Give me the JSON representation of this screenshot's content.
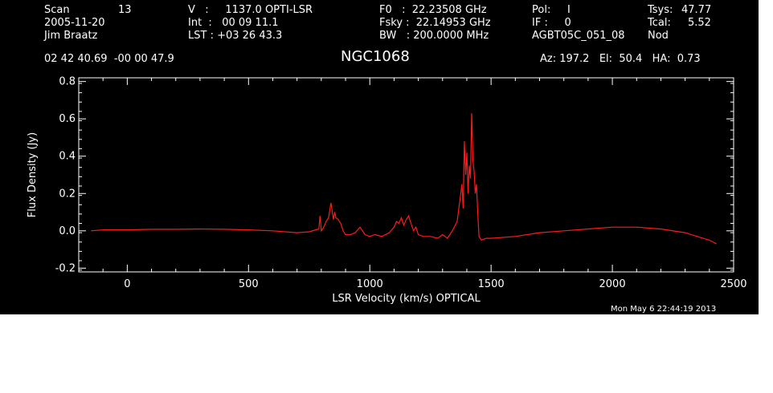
{
  "header": {
    "col1": {
      "scan_label": "Scan",
      "scan_value": "13",
      "date": "2005-11-20",
      "observer": "Jim Braatz"
    },
    "col2": {
      "velocity": "V   :     1137.0 OPTI-LSR",
      "int": "Int  :   00 09 11.1",
      "lst": "LST : +03 26 43.3"
    },
    "col3": {
      "f0": "F0   :  22.23508 GHz",
      "fsky": "Fsky :  22.14953 GHz",
      "bw": "BW   : 200.0000 MHz"
    },
    "col4": {
      "pol": "Pol:     I",
      "if": "IF :     0",
      "session": "AGBT05C_051_08"
    },
    "col5": {
      "tsys_label": "Tsys:",
      "tsys_value": "47.77",
      "tcal_label": "Tcal:",
      "tcal_value": "5.52",
      "mode": "Nod"
    },
    "coords": "02 42 40.69  -00 00 47.9",
    "pointing": "Az: 197.2   El:  50.4   HA:  0.73"
  },
  "footer": {
    "date": "Mon May  6 22:44:19 2013"
  },
  "colors": {
    "background": "#000000",
    "axes": "#ffffff",
    "series": "#ff1a1a"
  },
  "chart_data": {
    "type": "line",
    "title": "NGC1068",
    "xlabel": "LSR Velocity (km/s) OPTICAL",
    "ylabel": "Flux Density (Jy)",
    "xlim": [
      -200,
      2500
    ],
    "ylim": [
      -0.22,
      0.82
    ],
    "xticks": [
      0,
      500,
      1000,
      1500,
      2000,
      2500
    ],
    "yticks": [
      -0.2,
      0.0,
      0.2,
      0.4,
      0.6,
      0.8
    ],
    "ytick_labels": [
      "-0.2",
      "0.0",
      "0.2",
      "0.4",
      "0.6",
      "0.8"
    ],
    "grid": false,
    "series": [
      {
        "color": "#ff1a1a",
        "x": [
          -150,
          -100,
          0,
          100,
          200,
          300,
          400,
          500,
          600,
          700,
          750,
          790,
          795,
          800,
          810,
          820,
          830,
          840,
          850,
          855,
          860,
          870,
          880,
          890,
          900,
          920,
          940,
          960,
          980,
          1000,
          1020,
          1050,
          1080,
          1100,
          1110,
          1120,
          1130,
          1140,
          1150,
          1160,
          1170,
          1180,
          1190,
          1200,
          1220,
          1250,
          1280,
          1300,
          1320,
          1340,
          1360,
          1370,
          1380,
          1385,
          1390,
          1395,
          1400,
          1405,
          1410,
          1415,
          1420,
          1425,
          1430,
          1435,
          1440,
          1445,
          1450,
          1460,
          1480,
          1500,
          1600,
          1700,
          1800,
          1900,
          2000,
          2100,
          2200,
          2300,
          2350,
          2400,
          2430
        ],
        "y": [
          0.0,
          0.005,
          0.005,
          0.008,
          0.008,
          0.01,
          0.008,
          0.005,
          0.0,
          -0.01,
          -0.005,
          0.01,
          0.08,
          0.0,
          0.02,
          0.05,
          0.07,
          0.15,
          0.06,
          0.1,
          0.07,
          0.06,
          0.04,
          0.0,
          -0.02,
          -0.02,
          -0.01,
          0.02,
          -0.02,
          -0.03,
          -0.02,
          -0.03,
          -0.01,
          0.02,
          0.05,
          0.04,
          0.07,
          0.03,
          0.06,
          0.08,
          0.04,
          0.0,
          0.02,
          -0.02,
          -0.03,
          -0.03,
          -0.04,
          -0.02,
          -0.04,
          0.0,
          0.05,
          0.15,
          0.25,
          0.12,
          0.48,
          0.3,
          0.42,
          0.2,
          0.35,
          0.28,
          0.63,
          0.38,
          0.32,
          0.2,
          0.25,
          0.1,
          -0.03,
          -0.05,
          -0.04,
          -0.04,
          -0.03,
          -0.01,
          0.0,
          0.01,
          0.02,
          0.02,
          0.01,
          -0.01,
          -0.03,
          -0.05,
          -0.07
        ]
      }
    ]
  }
}
